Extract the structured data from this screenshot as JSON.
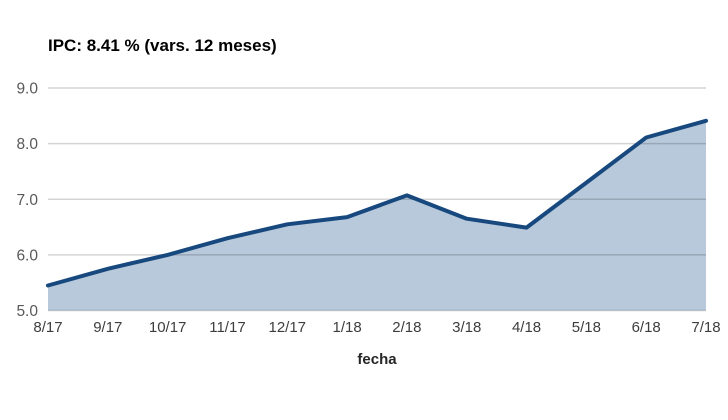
{
  "chart": {
    "title": "IPC: 8.41 % (vars. 12 meses)",
    "xlabel": "fecha",
    "colors": {
      "line": "#17487e",
      "fill": "#b7c9db",
      "gridline": "rgba(0,0,0,0.17)",
      "y_tick_text": "#595959",
      "x_tick_text": "#3d3d3d",
      "title_text": "#000000"
    }
  },
  "chart_data": {
    "type": "area",
    "title": "IPC: 8.41 % (vars. 12 meses)",
    "xlabel": "fecha",
    "ylabel": "",
    "categories": [
      "8/17",
      "9/17",
      "10/17",
      "11/17",
      "12/17",
      "1/18",
      "2/18",
      "3/18",
      "4/18",
      "5/18",
      "6/18",
      "7/18"
    ],
    "series": [
      {
        "name": "IPC vars. 12 meses (%)",
        "values": [
          5.45,
          5.75,
          6.0,
          6.3,
          6.55,
          6.68,
          7.07,
          6.65,
          6.49,
          7.3,
          8.11,
          8.41
        ]
      }
    ],
    "ylim": [
      5.0,
      9.0
    ],
    "yticks": [
      9.0,
      8.0,
      7.0,
      6.0,
      5.0
    ],
    "ytick_labels": [
      "9.0",
      "8.0",
      "7.0",
      "6.0",
      "5.0"
    ],
    "grid": "horizontal",
    "legend": "none",
    "baseline": 5.0
  }
}
